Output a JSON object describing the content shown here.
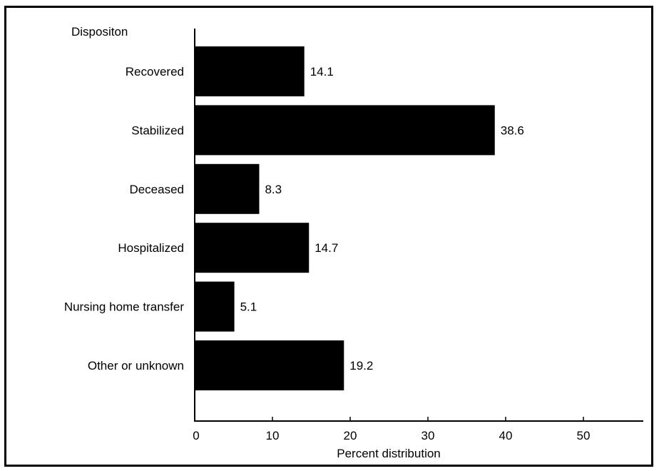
{
  "chart_data": {
    "type": "bar",
    "orientation": "horizontal",
    "title": "",
    "ylabel": "Dispositon",
    "xlabel": "Percent distribution",
    "categories": [
      "Recovered",
      "Stabilized",
      "Deceased",
      "Hospitalized",
      "Nursing home transfer",
      "Other or unknown"
    ],
    "values": [
      14.1,
      38.6,
      8.3,
      14.7,
      5.1,
      19.2
    ],
    "value_labels": [
      "14.1",
      "38.6",
      "8.3",
      "14.7",
      "5.1",
      "19.2"
    ],
    "xticks": [
      0,
      10,
      20,
      30,
      40,
      50
    ],
    "xtick_labels": [
      "0",
      "10",
      "20",
      "30",
      "40",
      "50"
    ],
    "xlim": [
      0,
      58
    ],
    "grid": false,
    "legend": "none",
    "bar_color": "#000000"
  }
}
